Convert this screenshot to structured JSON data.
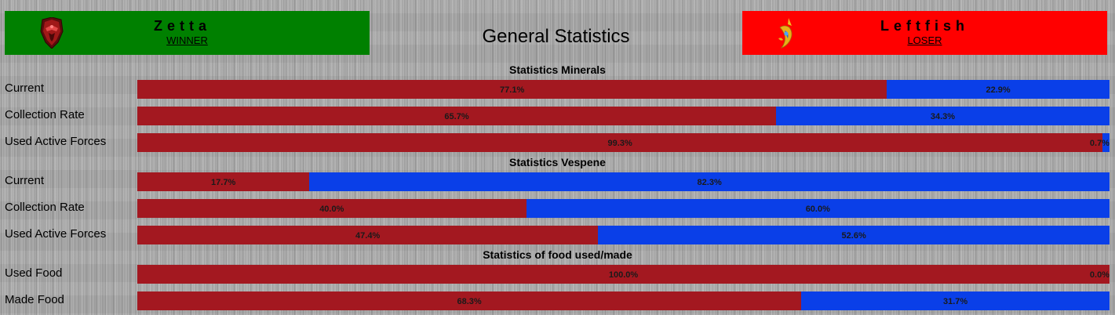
{
  "players": {
    "left": {
      "name": "Zetta",
      "result": "WINNER",
      "background": "#008000",
      "emblem": "terran-emblem-icon"
    },
    "right": {
      "name": "Leftfish",
      "result": "LOSER",
      "background": "#ff0000",
      "emblem": "protoss-emblem-icon"
    }
  },
  "page_title": "General Statistics",
  "colors": {
    "left_player_bar": "#a31820",
    "right_player_bar": "#0a3fe8"
  },
  "sections": [
    {
      "title": "Statistics Minerals",
      "rows": [
        {
          "label": "Current",
          "left_pct": 77.1,
          "right_pct": 22.9,
          "left_text": "77.1%",
          "right_text": "22.9%"
        },
        {
          "label": "Collection Rate",
          "left_pct": 65.7,
          "right_pct": 34.3,
          "left_text": "65.7%",
          "right_text": "34.3%"
        },
        {
          "label": "Used Active Forces",
          "left_pct": 99.3,
          "right_pct": 0.7,
          "left_text": "99.3%",
          "right_text": "0.7%"
        }
      ]
    },
    {
      "title": "Statistics Vespene",
      "rows": [
        {
          "label": "Current",
          "left_pct": 17.7,
          "right_pct": 82.3,
          "left_text": "17.7%",
          "right_text": "82.3%"
        },
        {
          "label": "Collection Rate",
          "left_pct": 40.0,
          "right_pct": 60.0,
          "left_text": "40.0%",
          "right_text": "60.0%"
        },
        {
          "label": "Used Active Forces",
          "left_pct": 47.4,
          "right_pct": 52.6,
          "left_text": "47.4%",
          "right_text": "52.6%"
        }
      ]
    },
    {
      "title": "Statistics of food used/made",
      "rows": [
        {
          "label": "Used Food",
          "left_pct": 100.0,
          "right_pct": 0.0,
          "left_text": "100.0%",
          "right_text": "0.0%"
        },
        {
          "label": "Made Food",
          "left_pct": 68.3,
          "right_pct": 31.7,
          "left_text": "68.3%",
          "right_text": "31.7%"
        }
      ]
    }
  ]
}
